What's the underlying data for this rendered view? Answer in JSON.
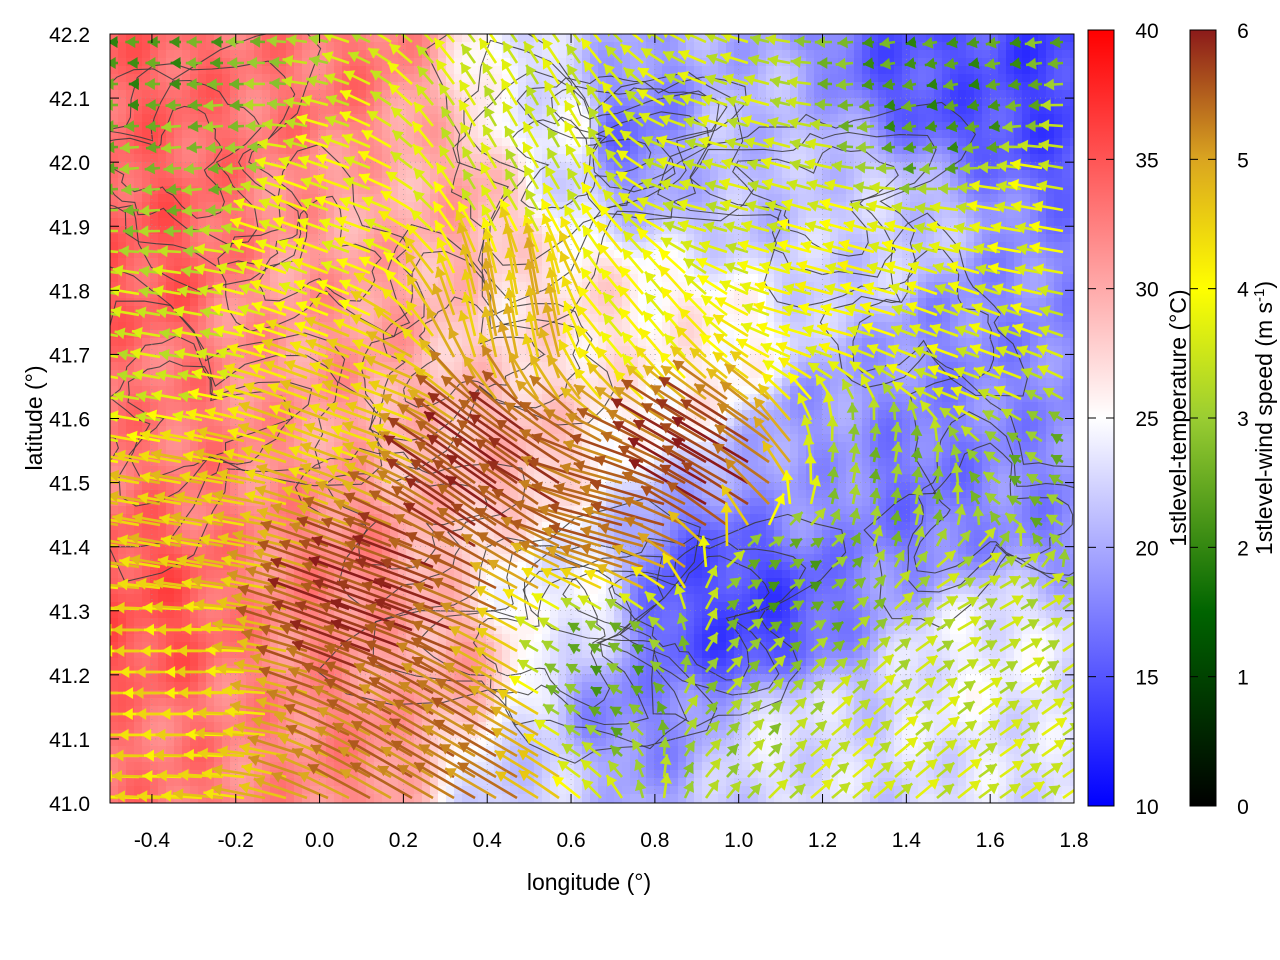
{
  "chart_data": {
    "type": "heatmap",
    "title": "",
    "xlabel": "longitude (°)",
    "ylabel": "latitude (°)",
    "xlim": [
      -0.5,
      1.8
    ],
    "ylim": [
      41.0,
      42.2
    ],
    "x_ticks": [
      "-0.4",
      "-0.2",
      "0.0",
      "0.2",
      "0.4",
      "0.6",
      "0.8",
      "1.0",
      "1.2",
      "1.4",
      "1.6",
      "1.8"
    ],
    "y_ticks": [
      "41.0",
      "41.1",
      "41.2",
      "41.3",
      "41.4",
      "41.5",
      "41.6",
      "41.7",
      "41.8",
      "41.9",
      "42.0",
      "42.1",
      "42.2"
    ],
    "grid": true,
    "layers": [
      "temperature heatmap",
      "terrain contour lines",
      "wind vectors"
    ],
    "temperature_colorbar": {
      "label_prefix": "1stlevel-temperature (",
      "unit": "°C",
      "label_suffix": ")",
      "range": [
        10,
        40
      ],
      "ticks": [
        "10",
        "15",
        "20",
        "25",
        "30",
        "35",
        "40"
      ],
      "colors": [
        "#0000ff",
        "#ffffff",
        "#ff0000"
      ]
    },
    "wind_colorbar": {
      "label_prefix": "1stlevel-wind speed (m s",
      "unit_exponent": "-1",
      "label_suffix": ")",
      "range": [
        0,
        6
      ],
      "ticks": [
        "0",
        "1",
        "2",
        "3",
        "4",
        "5",
        "6"
      ],
      "colors": [
        "#000000",
        "#006400",
        "#9acd32",
        "#ffff00",
        "#daa520",
        "#8b1a1a"
      ]
    },
    "temperature_anchors": [
      {
        "lon": -0.45,
        "lat": 42.1,
        "t": 34
      },
      {
        "lon": -0.45,
        "lat": 41.85,
        "t": 34.5
      },
      {
        "lon": -0.45,
        "lat": 41.6,
        "t": 33
      },
      {
        "lon": -0.45,
        "lat": 41.3,
        "t": 35
      },
      {
        "lon": -0.45,
        "lat": 41.05,
        "t": 33
      },
      {
        "lon": 0.0,
        "lat": 42.15,
        "t": 33
      },
      {
        "lon": 0.0,
        "lat": 41.75,
        "t": 31
      },
      {
        "lon": 0.0,
        "lat": 41.35,
        "t": 32
      },
      {
        "lon": 0.05,
        "lat": 41.1,
        "t": 32
      },
      {
        "lon": 0.3,
        "lat": 41.95,
        "t": 30
      },
      {
        "lon": 0.4,
        "lat": 41.55,
        "t": 29
      },
      {
        "lon": 0.3,
        "lat": 41.2,
        "t": 30
      },
      {
        "lon": 0.5,
        "lat": 41.05,
        "t": 22
      },
      {
        "lon": 0.6,
        "lat": 42.05,
        "t": 24
      },
      {
        "lon": 0.72,
        "lat": 42.05,
        "t": 17
      },
      {
        "lon": 0.6,
        "lat": 41.75,
        "t": 27
      },
      {
        "lon": 0.6,
        "lat": 41.3,
        "t": 24
      },
      {
        "lon": 0.75,
        "lat": 41.15,
        "t": 18
      },
      {
        "lon": 0.9,
        "lat": 41.3,
        "t": 15
      },
      {
        "lon": 1.0,
        "lat": 41.28,
        "t": 14
      },
      {
        "lon": 0.9,
        "lat": 41.7,
        "t": 26
      },
      {
        "lon": 1.0,
        "lat": 42.0,
        "t": 21
      },
      {
        "lon": 1.1,
        "lat": 41.1,
        "t": 23
      },
      {
        "lon": 1.2,
        "lat": 41.55,
        "t": 19
      },
      {
        "lon": 1.3,
        "lat": 41.9,
        "t": 22
      },
      {
        "lon": 1.4,
        "lat": 41.5,
        "t": 17
      },
      {
        "lon": 1.5,
        "lat": 42.15,
        "t": 15
      },
      {
        "lon": 1.6,
        "lat": 41.7,
        "t": 18
      },
      {
        "lon": 1.6,
        "lat": 41.2,
        "t": 24
      },
      {
        "lon": 1.75,
        "lat": 42.15,
        "t": 14
      },
      {
        "lon": 1.75,
        "lat": 41.5,
        "t": 18
      },
      {
        "lon": 1.75,
        "lat": 41.1,
        "t": 23
      }
    ],
    "wind_regions": [
      {
        "lon": -0.45,
        "lat": 42.15,
        "speed": 1.8,
        "dir_deg": 180
      },
      {
        "lon": -0.3,
        "lat": 42.0,
        "speed": 2.3,
        "dir_deg": 185
      },
      {
        "lon": -0.4,
        "lat": 41.7,
        "speed": 3.0,
        "dir_deg": 170
      },
      {
        "lon": -0.3,
        "lat": 41.45,
        "speed": 4.3,
        "dir_deg": 170
      },
      {
        "lon": -0.35,
        "lat": 41.2,
        "speed": 4.0,
        "dir_deg": 180
      },
      {
        "lon": 0.0,
        "lat": 41.9,
        "speed": 3.5,
        "dir_deg": 160
      },
      {
        "lon": 0.1,
        "lat": 41.6,
        "speed": 4.2,
        "dir_deg": 160
      },
      {
        "lon": 0.2,
        "lat": 41.3,
        "speed": 5.7,
        "dir_deg": 160
      },
      {
        "lon": 0.35,
        "lat": 41.1,
        "speed": 5.2,
        "dir_deg": 150
      },
      {
        "lon": 0.45,
        "lat": 41.5,
        "speed": 5.7,
        "dir_deg": 145
      },
      {
        "lon": 0.5,
        "lat": 41.75,
        "speed": 4.5,
        "dir_deg": 100
      },
      {
        "lon": 0.5,
        "lat": 42.0,
        "speed": 3.0,
        "dir_deg": 120
      },
      {
        "lon": 0.75,
        "lat": 41.45,
        "speed": 5.3,
        "dir_deg": 165
      },
      {
        "lon": 0.75,
        "lat": 41.75,
        "speed": 3.5,
        "dir_deg": 130
      },
      {
        "lon": 0.7,
        "lat": 41.2,
        "speed": 2.0,
        "dir_deg": 150
      },
      {
        "lon": 0.95,
        "lat": 41.5,
        "speed": 5.8,
        "dir_deg": 150
      },
      {
        "lon": 1.0,
        "lat": 41.95,
        "speed": 3.0,
        "dir_deg": 165
      },
      {
        "lon": 1.0,
        "lat": 41.15,
        "speed": 2.5,
        "dir_deg": 45
      },
      {
        "lon": 1.1,
        "lat": 41.35,
        "speed": 2.0,
        "dir_deg": 30
      },
      {
        "lon": 1.25,
        "lat": 41.8,
        "speed": 3.5,
        "dir_deg": 165
      },
      {
        "lon": 1.3,
        "lat": 41.05,
        "speed": 3.0,
        "dir_deg": 40
      },
      {
        "lon": 1.35,
        "lat": 41.5,
        "speed": 2.3,
        "dir_deg": 80
      },
      {
        "lon": 1.5,
        "lat": 42.1,
        "speed": 1.8,
        "dir_deg": 190
      },
      {
        "lon": 1.55,
        "lat": 41.7,
        "speed": 3.2,
        "dir_deg": 160
      },
      {
        "lon": 1.6,
        "lat": 41.3,
        "speed": 2.8,
        "dir_deg": 30
      },
      {
        "lon": 1.75,
        "lat": 41.9,
        "speed": 3.3,
        "dir_deg": 170
      },
      {
        "lon": 1.75,
        "lat": 41.5,
        "speed": 2.2,
        "dir_deg": 150
      },
      {
        "lon": 1.75,
        "lat": 41.05,
        "speed": 3.0,
        "dir_deg": 35
      }
    ]
  }
}
